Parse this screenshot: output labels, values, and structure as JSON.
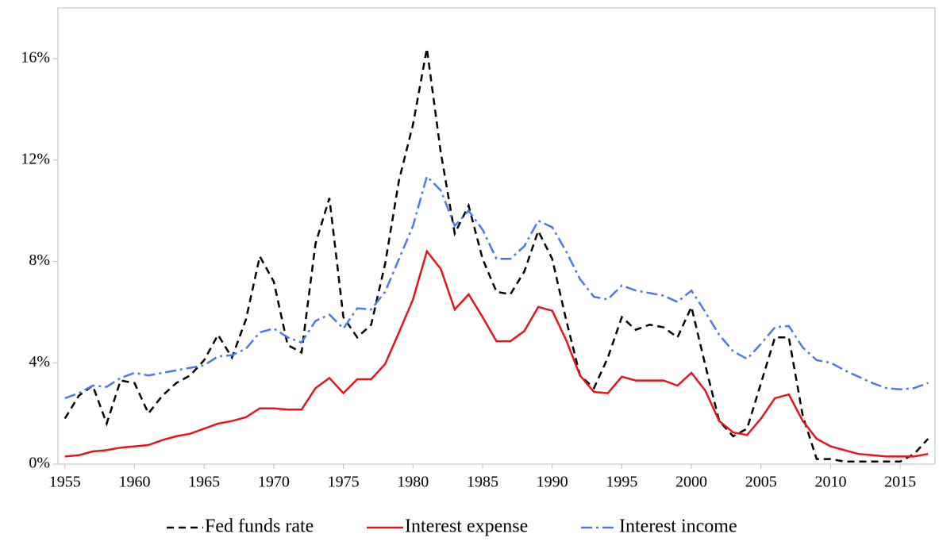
{
  "chart_data": {
    "type": "line",
    "x": [
      1955,
      1956,
      1957,
      1958,
      1959,
      1960,
      1961,
      1962,
      1963,
      1964,
      1965,
      1966,
      1967,
      1968,
      1969,
      1970,
      1971,
      1972,
      1973,
      1974,
      1975,
      1976,
      1977,
      1978,
      1979,
      1980,
      1981,
      1982,
      1983,
      1984,
      1985,
      1986,
      1987,
      1988,
      1989,
      1990,
      1991,
      1992,
      1993,
      1994,
      1995,
      1996,
      1997,
      1998,
      1999,
      2000,
      2001,
      2002,
      2003,
      2004,
      2005,
      2006,
      2007,
      2008,
      2009,
      2010,
      2011,
      2012,
      2013,
      2014,
      2015,
      2016,
      2017
    ],
    "series": [
      {
        "name": "Fed funds rate",
        "color": "#000000",
        "dash": "9,6",
        "values": [
          1.8,
          2.7,
          3.1,
          1.6,
          3.3,
          3.2,
          2.0,
          2.7,
          3.2,
          3.5,
          4.1,
          5.1,
          4.2,
          5.7,
          8.2,
          7.2,
          4.7,
          4.4,
          8.7,
          10.5,
          5.8,
          5.0,
          5.5,
          7.9,
          11.2,
          13.4,
          16.4,
          12.3,
          9.1,
          10.2,
          8.1,
          6.8,
          6.7,
          7.6,
          9.2,
          8.1,
          5.7,
          3.5,
          3.0,
          4.2,
          5.8,
          5.3,
          5.5,
          5.4,
          5.0,
          6.2,
          3.9,
          1.7,
          1.1,
          1.4,
          3.2,
          5.0,
          5.0,
          1.9,
          0.2,
          0.2,
          0.1,
          0.1,
          0.1,
          0.1,
          0.1,
          0.4,
          1.0
        ]
      },
      {
        "name": "Interest expense",
        "color": "#e8141c",
        "dash": "none",
        "values": [
          0.3,
          0.35,
          0.5,
          0.55,
          0.65,
          0.7,
          0.75,
          0.95,
          1.1,
          1.2,
          1.4,
          1.6,
          1.7,
          1.85,
          2.2,
          2.2,
          2.15,
          2.15,
          3.0,
          3.4,
          2.8,
          3.35,
          3.35,
          3.95,
          5.2,
          6.5,
          8.4,
          7.7,
          6.1,
          6.7,
          5.8,
          4.85,
          4.85,
          5.25,
          6.2,
          6.05,
          4.9,
          3.5,
          2.85,
          2.8,
          3.45,
          3.3,
          3.3,
          3.3,
          3.1,
          3.6,
          2.9,
          1.7,
          1.25,
          1.15,
          1.8,
          2.6,
          2.75,
          1.7,
          1.0,
          0.7,
          0.55,
          0.4,
          0.35,
          0.3,
          0.3,
          0.3,
          0.4
        ]
      },
      {
        "name": "Interest income",
        "color": "#4a7aea",
        "dash": "14,5,3,5",
        "values": [
          2.6,
          2.8,
          3.1,
          3.05,
          3.4,
          3.6,
          3.5,
          3.6,
          3.7,
          3.8,
          3.9,
          4.25,
          4.3,
          4.55,
          5.2,
          5.35,
          5.0,
          4.8,
          5.65,
          5.9,
          5.35,
          6.15,
          6.1,
          6.8,
          8.1,
          9.4,
          11.35,
          10.8,
          9.4,
          10.0,
          9.25,
          8.1,
          8.1,
          8.6,
          9.6,
          9.35,
          8.4,
          7.3,
          6.6,
          6.5,
          7.05,
          6.85,
          6.75,
          6.65,
          6.4,
          6.85,
          6.0,
          5.1,
          4.45,
          4.15,
          4.75,
          5.4,
          5.45,
          4.6,
          4.1,
          4.0,
          3.7,
          3.45,
          3.2,
          3.0,
          2.95,
          3.0,
          3.2
        ]
      }
    ],
    "xlim": [
      1954.5,
      2017.5
    ],
    "xticks": [
      1955,
      1960,
      1965,
      1970,
      1975,
      1980,
      1985,
      1990,
      1995,
      2000,
      2005,
      2010,
      2015
    ],
    "ylim": [
      0,
      18
    ],
    "yticks": [
      {
        "value": 0,
        "label": "0%"
      },
      {
        "value": 4,
        "label": "4%"
      },
      {
        "value": 8,
        "label": "8%"
      },
      {
        "value": 12,
        "label": "12%"
      },
      {
        "value": 16,
        "label": "16%"
      }
    ],
    "legend": "bottom"
  }
}
